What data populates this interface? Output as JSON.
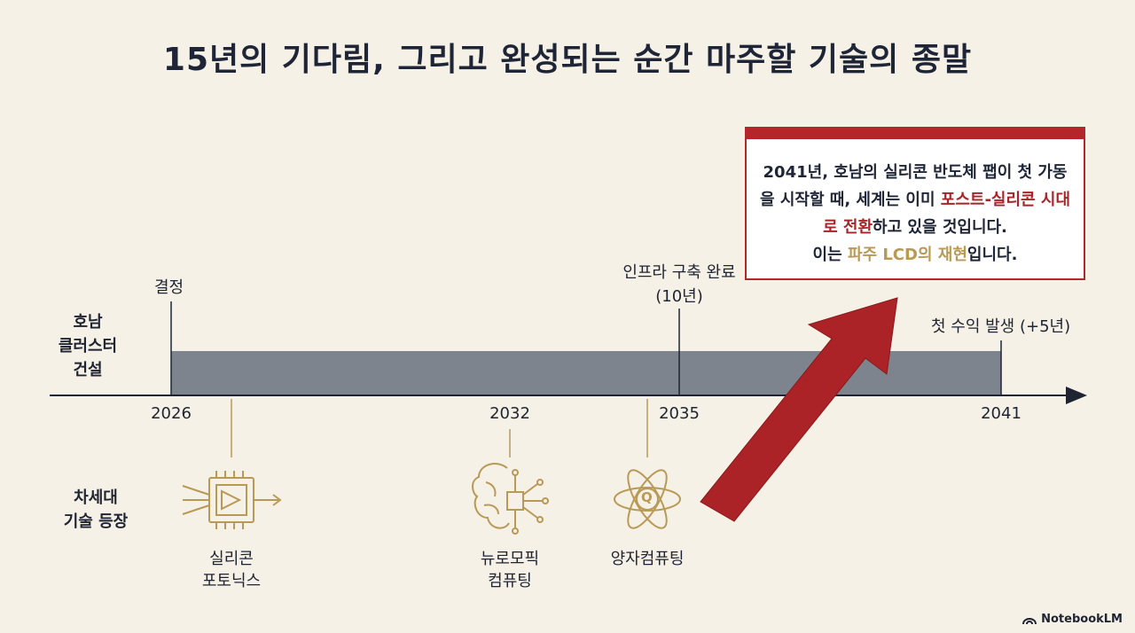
{
  "title": "15년의 기다림, 그리고 완성되는 순간 마주할 기술의 종말",
  "rows": {
    "cluster": "호남\n클러스터\n건설",
    "tech": "차세대\n기술 등장"
  },
  "milestones": {
    "decision": "결정",
    "infra": "인프라 구축 완료\n(10년)",
    "revenue": "첫 수익 발생 (+5년)"
  },
  "years": [
    "2026",
    "2032",
    "2035",
    "2041"
  ],
  "technologies": [
    {
      "label": "실리콘\n포토닉스",
      "icon": "silicon-photonics-chip-icon"
    },
    {
      "label": "뉴로모픽\n컴퓨팅",
      "icon": "neuromorphic-brain-chip-icon"
    },
    {
      "label": "양자컴퓨팅",
      "icon": "quantum-atom-icon"
    }
  ],
  "callout": {
    "p1a": "2041년, 호남의 실리콘 반도체 팹이 첫 가동을 시작할 때, 세계는 이미 ",
    "p1b": "포스트-실리콘 시대로 전환",
    "p1c": "하고 있을 것입니다.",
    "p2a": "이는 ",
    "p2b": "파주 LCD의 재현",
    "p2c": "입니다."
  },
  "brand": "NotebookLM",
  "colors": {
    "background": "#f6f1e6",
    "bar": "#7d848d",
    "accent_red": "#a82428",
    "gold": "#b89a56",
    "text": "#1e2536"
  }
}
